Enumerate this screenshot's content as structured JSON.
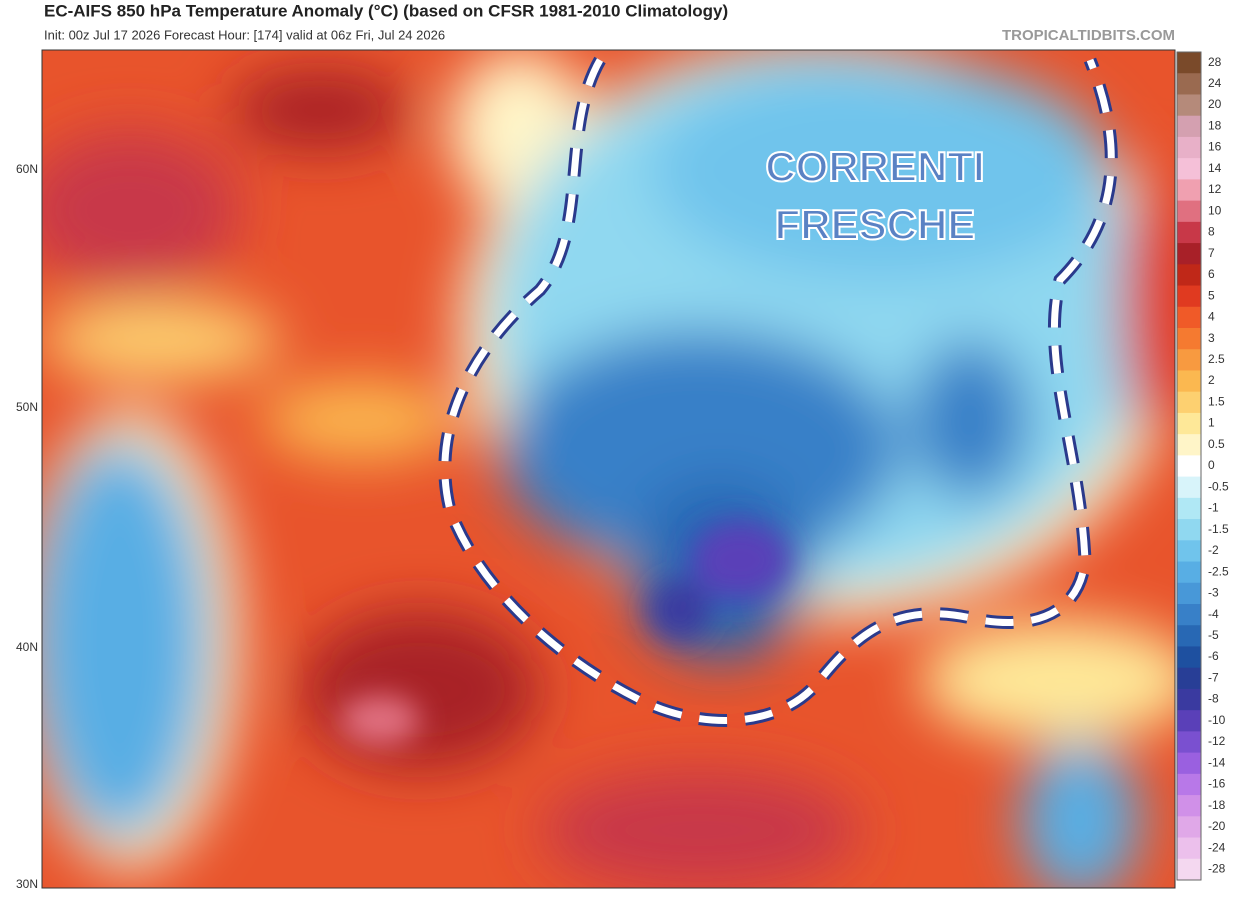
{
  "header": {
    "title": "EC-AIFS 850 hPa Temperature Anomaly (°C) (based on CFSR 1981-2010 Climatology)",
    "subtitle": "Init: 00z Jul 17 2026   Forecast Hour: [174]   valid at 06z Fri, Jul 24 2026",
    "watermark": "TROPICALTIDBITS.COM"
  },
  "map": {
    "latitude_labels": [
      "60N",
      "50N",
      "40N",
      "30N"
    ],
    "annotation": [
      "CORRENTI",
      "FRESCHE"
    ]
  },
  "colorbar": {
    "levels": [
      28,
      24,
      20,
      18,
      16,
      14,
      12,
      10,
      8,
      7,
      6,
      5,
      4,
      3,
      2.5,
      2,
      1.5,
      1,
      0.5,
      0,
      -0.5,
      -1,
      -1.5,
      -2,
      -2.5,
      -3,
      -4,
      -5,
      -6,
      -7,
      -8,
      -10,
      -12,
      -14,
      -16,
      -18,
      -20,
      -24,
      -28
    ],
    "colors": [
      "#7a4a2a",
      "#9a6a50",
      "#b58a7a",
      "#d4a0b0",
      "#e8b0c8",
      "#f5c0d8",
      "#f0a0b0",
      "#e07080",
      "#c83848",
      "#a82028",
      "#c02818",
      "#e03a20",
      "#f05a28",
      "#f57a30",
      "#f89a40",
      "#fbb850",
      "#fdd070",
      "#fee898",
      "#fff5c8",
      "#ffffff",
      "#d8f4fa",
      "#b0e8f5",
      "#90d8f0",
      "#70c4ec",
      "#58aee4",
      "#4898d8",
      "#3880c8",
      "#2868b4",
      "#1e50a0",
      "#283e96",
      "#3a3aa0",
      "#5a40b8",
      "#7a50d0",
      "#9a60e0",
      "#b878e8",
      "#d090e8",
      "#e0a8e8",
      "#ecc0ec",
      "#f4d8f0"
    ]
  }
}
